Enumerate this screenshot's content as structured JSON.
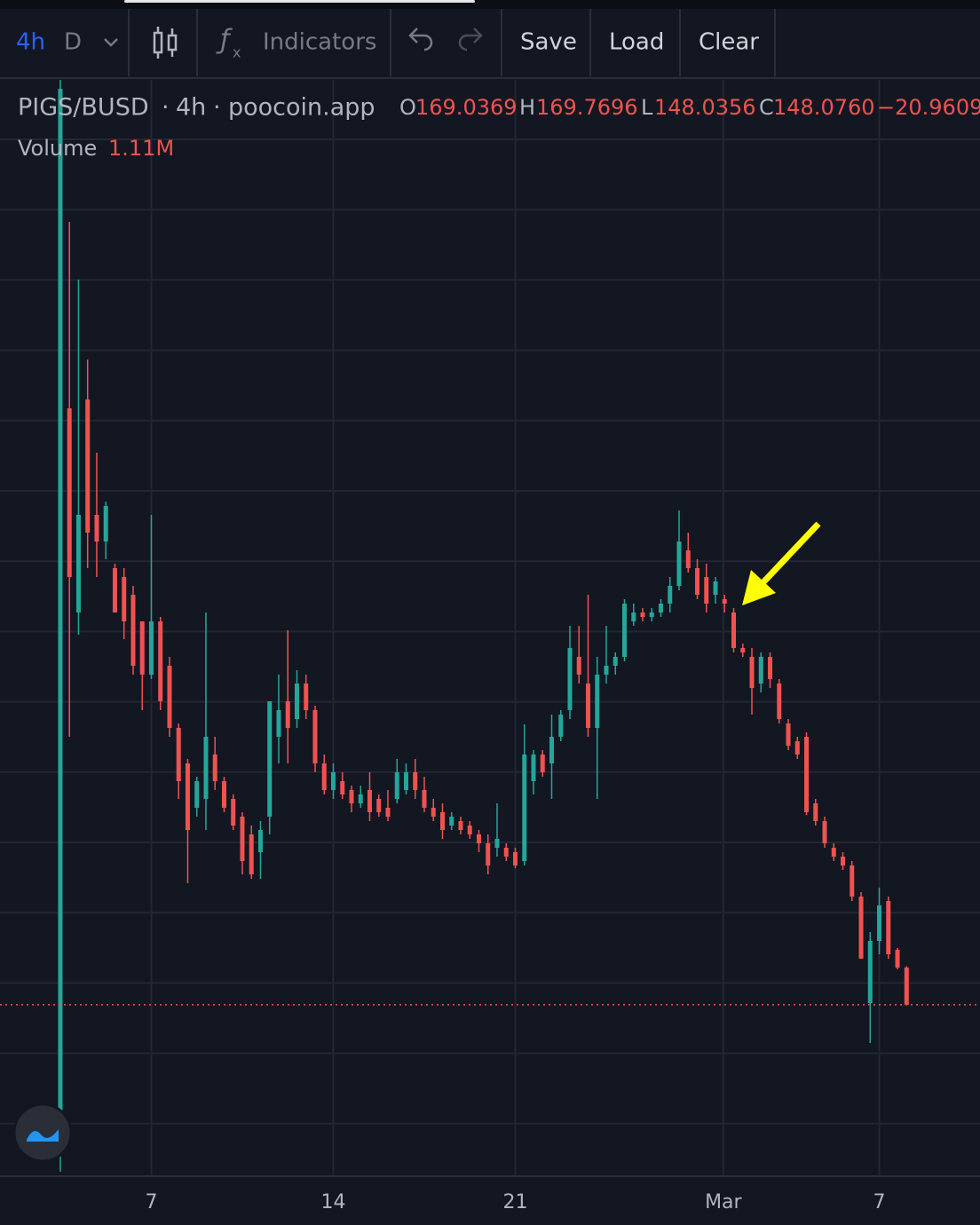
{
  "toolbar": {
    "interval": "4h",
    "chart_type": "D",
    "indicators": "Indicators",
    "save": "Save",
    "load": "Load",
    "clear": "Clear"
  },
  "legend": {
    "symbol": "PIGS/BUSD",
    "interval": "4h",
    "source": "poocoin.app",
    "ohlc": [
      {
        "label": "O",
        "value": "169.0369"
      },
      {
        "label": "H",
        "value": "169.7696"
      },
      {
        "label": "L",
        "value": "148.0356"
      },
      {
        "label": "C",
        "value": "148.0760"
      }
    ],
    "change": "−20.9609 (",
    "volume_label": "Volume",
    "volume_value": "1.11M"
  },
  "chart_data": {
    "type": "candlestick",
    "up_color": "#26a69a",
    "down_color": "#ef5350",
    "xlim": [
      -6.63,
      101.07
    ],
    "ylim": [
      44,
      669
    ],
    "xticks": [
      {
        "value": 10,
        "label": "7"
      },
      {
        "value": 30,
        "label": "14"
      },
      {
        "value": 50,
        "label": "21"
      },
      {
        "value": 72.86,
        "label": "Mar"
      },
      {
        "value": 90,
        "label": "7"
      }
    ],
    "open": [
      64,
      484,
      369,
      489,
      424,
      409,
      394,
      389,
      379,
      364,
      334,
      364,
      339,
      304,
      284,
      259,
      264,
      289,
      274,
      264,
      254,
      244,
      234,
      254,
      299,
      319,
      309,
      329,
      314,
      284,
      269,
      274,
      269,
      261.5,
      269,
      264,
      259,
      264,
      269,
      279,
      269,
      259,
      256.5,
      249,
      251.5,
      249,
      244,
      239,
      236.5,
      236.5,
      234,
      229,
      274,
      289,
      284,
      299,
      314,
      344,
      329,
      304,
      334,
      339,
      344,
      364,
      369,
      366.5,
      369,
      374,
      384,
      404,
      394,
      389,
      379,
      376.5,
      369,
      349,
      344,
      329,
      344,
      329,
      306.5,
      296.5,
      299,
      261.5,
      251.5,
      236.5,
      231.5,
      226.5,
      209,
      149,
      184,
      206.5,
      179,
      169.0369
    ],
    "high": [
      714,
      589,
      556.5,
      511.5,
      459,
      431.5,
      396.5,
      394,
      384,
      364,
      424,
      366.5,
      344,
      306.5,
      286.5,
      276.5,
      369,
      299,
      276.5,
      266.5,
      256.5,
      249,
      251.5,
      319,
      334,
      359,
      336.5,
      334,
      316.5,
      289,
      284,
      279,
      271.5,
      271.5,
      279,
      266.5,
      269,
      286.5,
      284,
      286.5,
      276.5,
      264,
      261.5,
      256.5,
      254,
      251.5,
      246.5,
      244,
      261.5,
      239,
      236.5,
      306,
      291.5,
      291.5,
      311.5,
      314,
      361.5,
      361.5,
      379,
      344,
      361.5,
      346.5,
      376.5,
      374,
      371.5,
      371.5,
      376.5,
      389,
      426.5,
      414,
      399,
      396.5,
      389,
      379,
      371.5,
      351.5,
      349,
      346.5,
      346.5,
      331.5,
      309,
      299,
      301.5,
      264,
      254,
      239,
      234,
      229,
      211.5,
      189,
      214,
      209,
      180,
      169.7696
    ],
    "low": [
      54,
      299,
      356.5,
      394,
      389,
      399,
      369,
      354,
      334,
      314,
      331.5,
      314,
      299,
      264,
      216.5,
      254,
      246.5,
      269,
      256.5,
      246.5,
      221.5,
      219,
      219,
      244,
      284,
      284,
      304,
      309,
      279,
      266.5,
      264,
      264,
      256.5,
      259,
      251.5,
      254,
      251.5,
      261.5,
      266.5,
      264,
      256.5,
      251.5,
      241.5,
      246.5,
      244,
      241.5,
      234,
      221.5,
      231.5,
      229,
      225,
      226.5,
      266.5,
      276.5,
      264,
      296.5,
      309,
      329,
      299,
      264,
      329,
      334,
      341.5,
      361.5,
      364,
      364,
      366.5,
      369,
      381.5,
      391.5,
      376.5,
      369,
      374,
      369,
      346.5,
      344,
      311.5,
      324,
      326.5,
      306.5,
      291.5,
      286.5,
      255,
      249,
      236.5,
      229,
      224,
      206.5,
      174,
      126.5,
      176.5,
      174,
      168,
      148.0356
    ],
    "close": [
      664,
      389,
      424,
      414,
      409,
      429,
      369,
      364,
      339,
      334,
      364,
      319,
      304,
      274,
      246.5,
      274,
      299,
      274,
      259,
      249,
      229,
      221.5,
      246.5,
      319,
      314,
      304,
      329,
      314,
      284,
      269,
      279,
      266.5,
      261.5,
      266.5,
      256.5,
      256.5,
      254,
      279,
      279,
      269,
      259,
      254,
      246.5,
      254,
      246.5,
      244,
      239,
      226.5,
      241.5,
      231.5,
      226.5,
      289,
      289,
      279,
      299,
      311.5,
      349,
      334,
      304,
      334,
      339,
      344,
      374,
      369,
      366.5,
      369,
      374,
      384,
      409,
      394,
      379,
      374,
      386.5,
      374,
      349,
      346.5,
      326.5,
      344,
      331.5,
      309,
      294,
      289,
      256.5,
      251.5,
      239,
      231.5,
      226.5,
      209,
      174,
      184,
      204,
      176.5,
      169,
      148.076
    ]
  }
}
